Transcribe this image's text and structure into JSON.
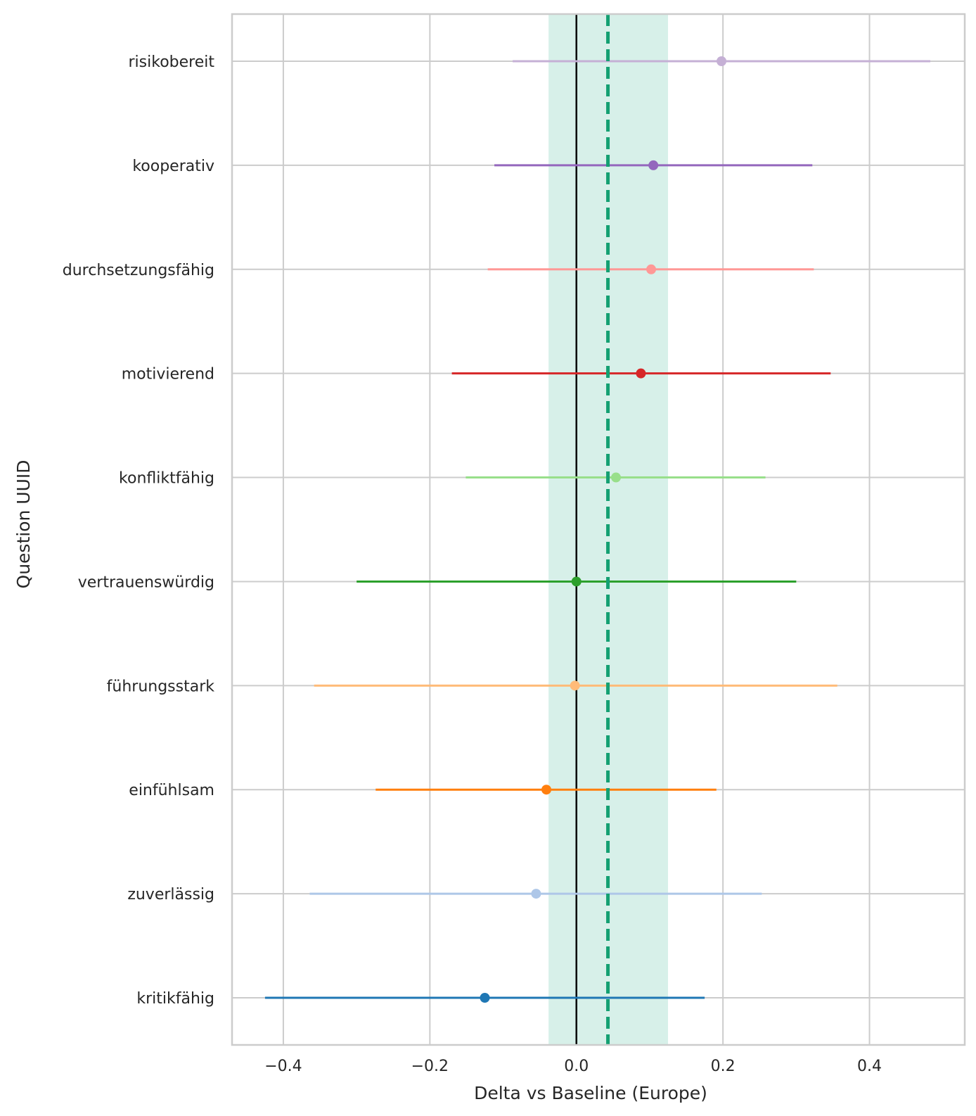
{
  "chart_data": {
    "type": "forest",
    "xlabel": "Delta vs Baseline (Europe)",
    "ylabel": "Question UUID",
    "xlim": [
      -0.47,
      0.53
    ],
    "xticks": [
      -0.4,
      -0.2,
      0.0,
      0.2,
      0.4
    ],
    "xtick_labels": [
      "−0.4",
      "−0.2",
      "0.0",
      "0.2",
      "0.4"
    ],
    "grid": true,
    "reference_line": 0.0,
    "mean_line": 0.043,
    "band": [
      -0.038,
      0.125
    ],
    "band_color": "#d7f0e9",
    "mean_line_color": "#14a072",
    "items": [
      {
        "label": "risikobereit",
        "estimate": 0.198,
        "low": -0.087,
        "high": 0.483,
        "color": "#c5b0d5"
      },
      {
        "label": "kooperativ",
        "estimate": 0.105,
        "low": -0.112,
        "high": 0.322,
        "color": "#9467bd"
      },
      {
        "label": "durchsetzungsfähig",
        "estimate": 0.102,
        "low": -0.121,
        "high": 0.324,
        "color": "#ff9896"
      },
      {
        "label": "motivierend",
        "estimate": 0.088,
        "low": -0.17,
        "high": 0.347,
        "color": "#d62728"
      },
      {
        "label": "konfliktfähig",
        "estimate": 0.054,
        "low": -0.151,
        "high": 0.258,
        "color": "#98df8a"
      },
      {
        "label": "vertrauenswürdig",
        "estimate": 0.0,
        "low": -0.3,
        "high": 0.3,
        "color": "#2ca02c"
      },
      {
        "label": "führungsstark",
        "estimate": -0.002,
        "low": -0.358,
        "high": 0.356,
        "color": "#ffbb78"
      },
      {
        "label": "einfühlsam",
        "estimate": -0.041,
        "low": -0.274,
        "high": 0.191,
        "color": "#ff7f0e"
      },
      {
        "label": "zuverlässig",
        "estimate": -0.055,
        "low": -0.364,
        "high": 0.253,
        "color": "#aec7e8"
      },
      {
        "label": "kritikfähig",
        "estimate": -0.125,
        "low": -0.425,
        "high": 0.175,
        "color": "#1f77b4"
      }
    ]
  }
}
